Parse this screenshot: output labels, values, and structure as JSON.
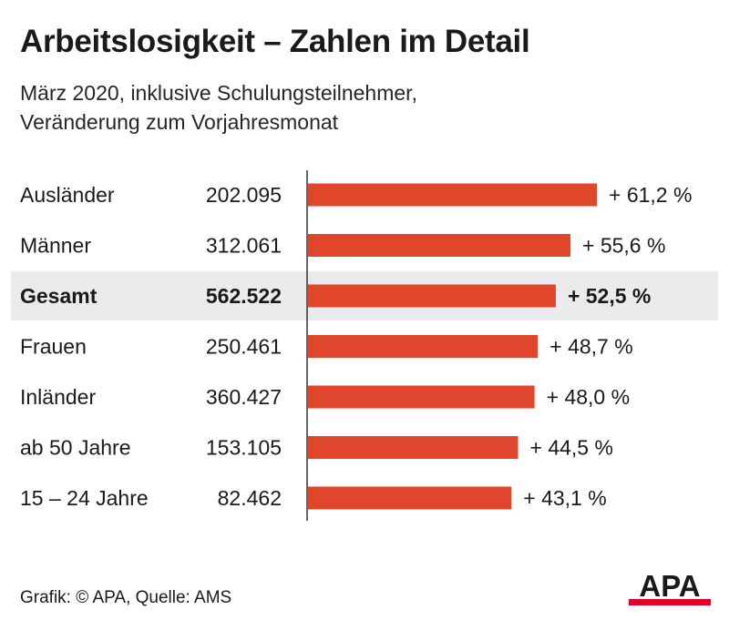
{
  "title": "Arbeitslosigkeit – Zahlen im Detail",
  "subtitle": {
    "line1": "März 2020, inklusive Schulungsteilnehmer,",
    "line2": "Veränderung zum Vorjahresmonat"
  },
  "footer": "Grafik: © APA, Quelle: AMS",
  "logo_text": "APA",
  "colors": {
    "bar": "#e0462b",
    "highlight_band": "#e9ebec",
    "axis": "#333333",
    "text": "#1a1a1a",
    "logo_red": "#e4002b"
  },
  "chart_data": {
    "type": "bar",
    "orientation": "horizontal",
    "value_unit": "%",
    "xlim": [
      0,
      70
    ],
    "rows": [
      {
        "label": "Ausländer",
        "count": "202.095",
        "value": 61.2,
        "value_label": "+ 61,2 %",
        "highlight": false
      },
      {
        "label": "Männer",
        "count": "312.061",
        "value": 55.6,
        "value_label": "+ 55,6 %",
        "highlight": false
      },
      {
        "label": "Gesamt",
        "count": "562.522",
        "value": 52.5,
        "value_label": "+ 52,5 %",
        "highlight": true
      },
      {
        "label": "Frauen",
        "count": "250.461",
        "value": 48.7,
        "value_label": "+ 48,7 %",
        "highlight": false
      },
      {
        "label": "Inländer",
        "count": "360.427",
        "value": 48.0,
        "value_label": "+ 48,0 %",
        "highlight": false
      },
      {
        "label": "ab 50 Jahre",
        "count": "153.105",
        "value": 44.5,
        "value_label": "+ 44,5 %",
        "highlight": false
      },
      {
        "label": "15 – 24 Jahre",
        "count": "82.462",
        "value": 43.1,
        "value_label": "+ 43,1 %",
        "highlight": false
      }
    ]
  }
}
